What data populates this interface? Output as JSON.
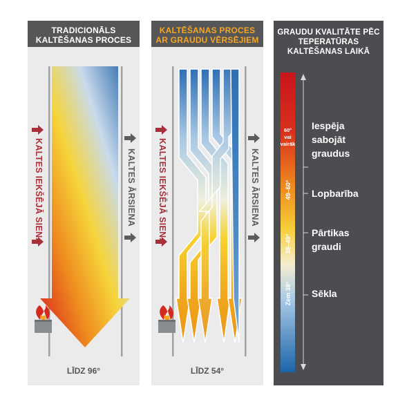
{
  "panel1": {
    "header_line1": "TRADICIONĀLS",
    "header_line2": "KALTĒŠANAS PROCES",
    "inner_wall": "KALTES IEKŠĒJĀ SIENA",
    "outer_wall": "KALTES ĀRSIENA",
    "bottom": "LĪDZ 96°"
  },
  "panel2": {
    "header_line1": "KALTĒŠANAS PROCES",
    "header_line2": "AR GRAUDU VĒRSĒJIEM",
    "inner_wall": "KALTES IEKŠĒJĀ SIENA",
    "outer_wall": "KALTES ĀRSIENA",
    "bottom": "LĪDZ 54°"
  },
  "panel3": {
    "header_line1": "GRAUDU KVALITĀTE PĒC",
    "header_line2": "TEPERATŪRAS",
    "header_line3": "KALTĒŠANAS LAIKĀ",
    "scale": {
      "top_temp": "60°",
      "top_temp_2": "vai",
      "top_temp_3": "vairāk",
      "t2": "49–60°",
      "t3": "38–49°",
      "t4": "Zem 38°"
    },
    "labels": {
      "l1_a": "Iespēja",
      "l1_b": "sabojāt",
      "l1_c": "graudus",
      "l2": "Lopbarība",
      "l3_a": "Pārtikas",
      "l3_b": "graudi",
      "l4": "Sēkla"
    }
  },
  "colors": {
    "header_bg": "#545658",
    "panel_bg": "#ebebeb",
    "quality_bg": "#4b4d50",
    "accent_orange": "#f6a623",
    "arrow_red": "#a8303a",
    "arrow_gray": "#5a5d60"
  }
}
